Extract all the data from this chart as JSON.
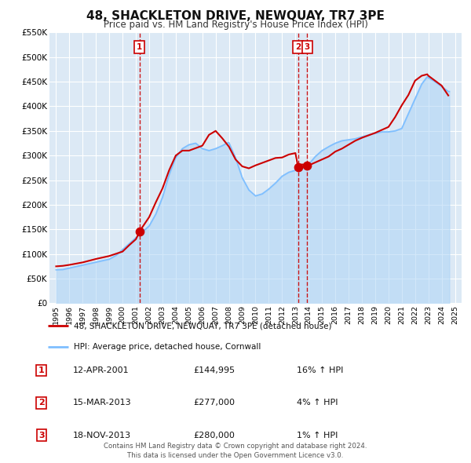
{
  "title": "48, SHACKLETON DRIVE, NEWQUAY, TR7 3PE",
  "subtitle": "Price paid vs. HM Land Registry's House Price Index (HPI)",
  "background_color": "#ffffff",
  "plot_background_color": "#dce9f5",
  "grid_color": "#ffffff",
  "hpi_line_color": "#7fbfff",
  "hpi_fill_color": "#add4f5",
  "price_line_color": "#cc0000",
  "marker_color": "#cc0000",
  "vline_color": "#cc0000",
  "ylim": [
    0,
    550000
  ],
  "yticks": [
    0,
    50000,
    100000,
    150000,
    200000,
    250000,
    300000,
    350000,
    400000,
    450000,
    500000,
    550000
  ],
  "ytick_labels": [
    "£0",
    "£50K",
    "£100K",
    "£150K",
    "£200K",
    "£250K",
    "£300K",
    "£350K",
    "£400K",
    "£450K",
    "£500K",
    "£550K"
  ],
  "xlim_start": 1994.5,
  "xlim_end": 2025.5,
  "xtick_years": [
    1995,
    1996,
    1997,
    1998,
    1999,
    2000,
    2001,
    2002,
    2003,
    2004,
    2005,
    2006,
    2007,
    2008,
    2009,
    2010,
    2011,
    2012,
    2013,
    2014,
    2015,
    2016,
    2017,
    2018,
    2019,
    2020,
    2021,
    2022,
    2023,
    2024,
    2025
  ],
  "legend_label_price": "48, SHACKLETON DRIVE, NEWQUAY, TR7 3PE (detached house)",
  "legend_label_hpi": "HPI: Average price, detached house, Cornwall",
  "transactions": [
    {
      "num": 1,
      "date": "12-APR-2001",
      "price": 144995,
      "price_str": "£144,995",
      "pct": "16%",
      "dir": "↑",
      "x": 2001.28
    },
    {
      "num": 2,
      "date": "15-MAR-2013",
      "price": 277000,
      "price_str": "£277,000",
      "pct": "4%",
      "dir": "↑",
      "x": 2013.2
    },
    {
      "num": 3,
      "date": "18-NOV-2013",
      "price": 280000,
      "price_str": "£280,000",
      "pct": "1%",
      "dir": "↑",
      "x": 2013.88
    }
  ],
  "footer_line1": "Contains HM Land Registry data © Crown copyright and database right 2024.",
  "footer_line2": "This data is licensed under the Open Government Licence v3.0."
}
